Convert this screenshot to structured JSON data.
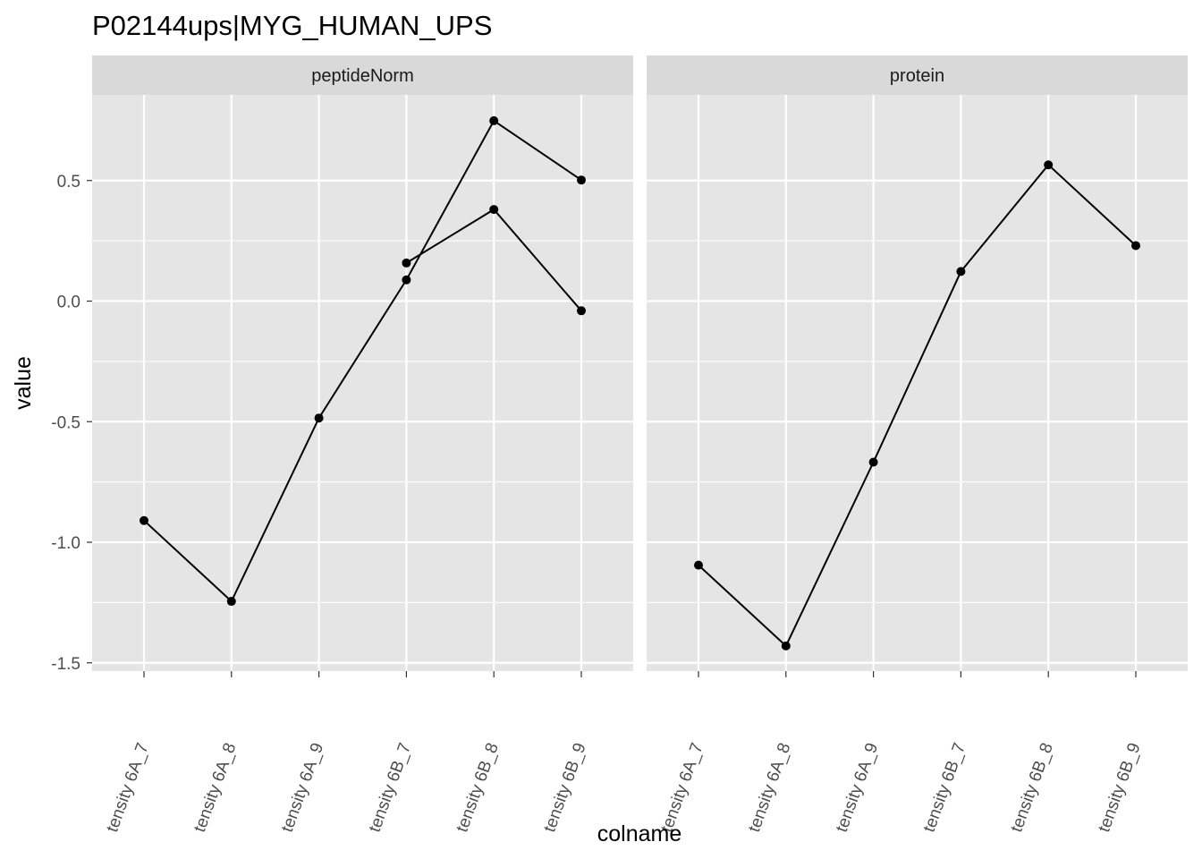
{
  "chart_data": {
    "type": "line",
    "title": "P02144ups|MYG_HUMAN_UPS",
    "xlabel": "colname",
    "ylabel": "value",
    "categories": [
      "tensity 6A_7",
      "tensity 6A_8",
      "tensity 6A_9",
      "tensity 6B_7",
      "tensity 6B_8",
      "tensity 6B_9"
    ],
    "ylim": [
      -1.53,
      0.86
    ],
    "yticks": [
      -1.5,
      -1.0,
      -0.5,
      0.0,
      0.5
    ],
    "ytick_labels": [
      "-1.5",
      "-1.0",
      "-0.5",
      "0.0",
      "0.5"
    ],
    "grid": true,
    "facets": [
      {
        "name": "peptideNorm",
        "series": [
          {
            "values": [
              -0.91,
              -1.245,
              -0.485,
              0.088,
              0.748,
              0.502
            ]
          },
          {
            "values": [
              null,
              null,
              null,
              0.158,
              0.38,
              -0.04
            ]
          }
        ]
      },
      {
        "name": "protein",
        "series": [
          {
            "values": [
              -1.095,
              -1.43,
              -0.668,
              0.123,
              0.565,
              0.23
            ]
          }
        ]
      }
    ]
  },
  "colors": {
    "panel_bg": "#e5e5e5",
    "strip_bg": "#d9d9d9",
    "grid": "#ffffff",
    "line": "#000000"
  }
}
